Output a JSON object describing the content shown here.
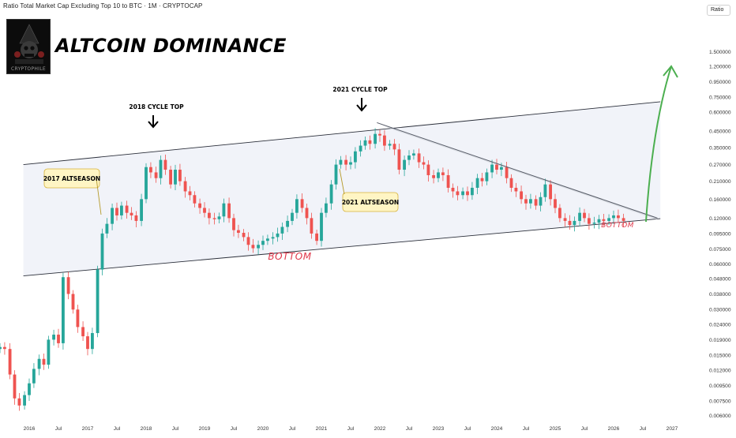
{
  "header": {
    "chart_title": "Ratio Total Market Cap Excluding Top 10 to BTC · 1M · CRYPTOCAP",
    "headline": "ALTCOIN DOMINANCE",
    "logo_text": "CRYPTOPHILE",
    "scale_badge": "Ratio"
  },
  "chart_data": {
    "type": "candlestick",
    "title": "Ratio Total Market Cap Excluding Top 10 to BTC · 1M · CRYPTOCAP",
    "y_scale": "log",
    "ylim": [
      0.0055,
      2.4
    ],
    "y_ticks": [
      "1.500000",
      "1.200000",
      "0.950000",
      "0.750000",
      "0.600000",
      "0.450000",
      "0.350000",
      "0.270000",
      "0.210000",
      "0.160000",
      "0.120000",
      "0.095000",
      "0.075000",
      "0.060000",
      "0.048000",
      "0.038000",
      "0.030000",
      "0.024000",
      "0.019000",
      "0.015000",
      "0.012000",
      "0.009500",
      "0.007500",
      "0.006000"
    ],
    "x_ticks": [
      "Jul",
      "2016",
      "Jul",
      "2017",
      "Jul",
      "2018",
      "Jul",
      "2019",
      "Jul",
      "2020",
      "Jul",
      "2021",
      "Jul",
      "2022",
      "Jul",
      "2023",
      "Jul",
      "2024",
      "Jul",
      "2025",
      "Jul",
      "2026",
      "Jul",
      "2027",
      "Jul"
    ],
    "x_range": [
      2015.5,
      2027.5
    ],
    "bull_color": "#26a69a",
    "bear_color": "#ef5350",
    "channel_color": "#2a2e39",
    "channel_fill": "#eef1f8",
    "arrow_color": "#4caf50",
    "bottom_label_color": "#e0384b",
    "callout_fill": "#fff5c4",
    "candles": [
      {
        "t": 2015.5,
        "c": 0.017
      },
      {
        "t": 2015.58,
        "c": 0.0165
      },
      {
        "t": 2015.67,
        "c": 0.0112
      },
      {
        "t": 2015.75,
        "c": 0.0078
      },
      {
        "t": 2015.83,
        "c": 0.007
      },
      {
        "t": 2015.92,
        "c": 0.0082
      },
      {
        "t": 2016.0,
        "c": 0.0098
      },
      {
        "t": 2016.08,
        "c": 0.0122
      },
      {
        "t": 2016.17,
        "c": 0.0142
      },
      {
        "t": 2016.25,
        "c": 0.013
      },
      {
        "t": 2016.33,
        "c": 0.019
      },
      {
        "t": 2016.42,
        "c": 0.0205
      },
      {
        "t": 2016.5,
        "c": 0.018
      },
      {
        "t": 2016.58,
        "c": 0.049
      },
      {
        "t": 2016.67,
        "c": 0.038
      },
      {
        "t": 2016.75,
        "c": 0.03
      },
      {
        "t": 2016.83,
        "c": 0.023
      },
      {
        "t": 2016.92,
        "c": 0.02
      },
      {
        "t": 2017.0,
        "c": 0.0165
      },
      {
        "t": 2017.08,
        "c": 0.021
      },
      {
        "t": 2017.17,
        "c": 0.055
      },
      {
        "t": 2017.25,
        "c": 0.095
      },
      {
        "t": 2017.33,
        "c": 0.11
      },
      {
        "t": 2017.42,
        "c": 0.14
      },
      {
        "t": 2017.5,
        "c": 0.125
      },
      {
        "t": 2017.58,
        "c": 0.145
      },
      {
        "t": 2017.67,
        "c": 0.13
      },
      {
        "t": 2017.75,
        "c": 0.125
      },
      {
        "t": 2017.83,
        "c": 0.115
      },
      {
        "t": 2017.92,
        "c": 0.16
      },
      {
        "t": 2018.0,
        "c": 0.26
      },
      {
        "t": 2018.08,
        "c": 0.24
      },
      {
        "t": 2018.17,
        "c": 0.22
      },
      {
        "t": 2018.25,
        "c": 0.29
      },
      {
        "t": 2018.33,
        "c": 0.25
      },
      {
        "t": 2018.42,
        "c": 0.2
      },
      {
        "t": 2018.5,
        "c": 0.25
      },
      {
        "t": 2018.58,
        "c": 0.21
      },
      {
        "t": 2018.67,
        "c": 0.18
      },
      {
        "t": 2018.75,
        "c": 0.17
      },
      {
        "t": 2018.83,
        "c": 0.15
      },
      {
        "t": 2018.92,
        "c": 0.14
      },
      {
        "t": 2019.0,
        "c": 0.13
      },
      {
        "t": 2019.08,
        "c": 0.12
      },
      {
        "t": 2019.17,
        "c": 0.118
      },
      {
        "t": 2019.25,
        "c": 0.123
      },
      {
        "t": 2019.33,
        "c": 0.15
      },
      {
        "t": 2019.42,
        "c": 0.12
      },
      {
        "t": 2019.5,
        "c": 0.1
      },
      {
        "t": 2019.58,
        "c": 0.096
      },
      {
        "t": 2019.67,
        "c": 0.09
      },
      {
        "t": 2019.75,
        "c": 0.08
      },
      {
        "t": 2019.83,
        "c": 0.076
      },
      {
        "t": 2019.92,
        "c": 0.08
      },
      {
        "t": 2020.0,
        "c": 0.085
      },
      {
        "t": 2020.08,
        "c": 0.088
      },
      {
        "t": 2020.17,
        "c": 0.09
      },
      {
        "t": 2020.25,
        "c": 0.095
      },
      {
        "t": 2020.33,
        "c": 0.105
      },
      {
        "t": 2020.42,
        "c": 0.115
      },
      {
        "t": 2020.5,
        "c": 0.13
      },
      {
        "t": 2020.58,
        "c": 0.16
      },
      {
        "t": 2020.67,
        "c": 0.14
      },
      {
        "t": 2020.75,
        "c": 0.12
      },
      {
        "t": 2020.83,
        "c": 0.095
      },
      {
        "t": 2020.92,
        "c": 0.085
      },
      {
        "t": 2021.0,
        "c": 0.13
      },
      {
        "t": 2021.08,
        "c": 0.15
      },
      {
        "t": 2021.17,
        "c": 0.2
      },
      {
        "t": 2021.25,
        "c": 0.27
      },
      {
        "t": 2021.33,
        "c": 0.29
      },
      {
        "t": 2021.42,
        "c": 0.27
      },
      {
        "t": 2021.5,
        "c": 0.28
      },
      {
        "t": 2021.58,
        "c": 0.33
      },
      {
        "t": 2021.67,
        "c": 0.36
      },
      {
        "t": 2021.75,
        "c": 0.39
      },
      {
        "t": 2021.83,
        "c": 0.37
      },
      {
        "t": 2021.92,
        "c": 0.43
      },
      {
        "t": 2022.0,
        "c": 0.42
      },
      {
        "t": 2022.08,
        "c": 0.36
      },
      {
        "t": 2022.17,
        "c": 0.37
      },
      {
        "t": 2022.25,
        "c": 0.34
      },
      {
        "t": 2022.33,
        "c": 0.25
      },
      {
        "t": 2022.42,
        "c": 0.29
      },
      {
        "t": 2022.5,
        "c": 0.31
      },
      {
        "t": 2022.58,
        "c": 0.32
      },
      {
        "t": 2022.67,
        "c": 0.28
      },
      {
        "t": 2022.75,
        "c": 0.27
      },
      {
        "t": 2022.83,
        "c": 0.23
      },
      {
        "t": 2022.92,
        "c": 0.22
      },
      {
        "t": 2023.0,
        "c": 0.24
      },
      {
        "t": 2023.08,
        "c": 0.23
      },
      {
        "t": 2023.17,
        "c": 0.19
      },
      {
        "t": 2023.25,
        "c": 0.18
      },
      {
        "t": 2023.33,
        "c": 0.17
      },
      {
        "t": 2023.42,
        "c": 0.18
      },
      {
        "t": 2023.5,
        "c": 0.17
      },
      {
        "t": 2023.58,
        "c": 0.19
      },
      {
        "t": 2023.67,
        "c": 0.22
      },
      {
        "t": 2023.75,
        "c": 0.21
      },
      {
        "t": 2023.83,
        "c": 0.24
      },
      {
        "t": 2023.92,
        "c": 0.27
      },
      {
        "t": 2024.0,
        "c": 0.25
      },
      {
        "t": 2024.08,
        "c": 0.26
      },
      {
        "t": 2024.17,
        "c": 0.22
      },
      {
        "t": 2024.25,
        "c": 0.19
      },
      {
        "t": 2024.33,
        "c": 0.18
      },
      {
        "t": 2024.42,
        "c": 0.16
      },
      {
        "t": 2024.5,
        "c": 0.15
      },
      {
        "t": 2024.58,
        "c": 0.16
      },
      {
        "t": 2024.67,
        "c": 0.145
      },
      {
        "t": 2024.75,
        "c": 0.165
      },
      {
        "t": 2024.83,
        "c": 0.2
      },
      {
        "t": 2024.92,
        "c": 0.16
      },
      {
        "t": 2025.0,
        "c": 0.14
      },
      {
        "t": 2025.08,
        "c": 0.12
      },
      {
        "t": 2025.17,
        "c": 0.115
      },
      {
        "t": 2025.25,
        "c": 0.108
      },
      {
        "t": 2025.33,
        "c": 0.115
      },
      {
        "t": 2025.42,
        "c": 0.13
      },
      {
        "t": 2025.5,
        "c": 0.12
      },
      {
        "t": 2025.58,
        "c": 0.11
      },
      {
        "t": 2025.67,
        "c": 0.112
      },
      {
        "t": 2025.75,
        "c": 0.118
      },
      {
        "t": 2025.83,
        "c": 0.115
      },
      {
        "t": 2025.92,
        "c": 0.12
      },
      {
        "t": 2026.0,
        "c": 0.125
      },
      {
        "t": 2026.08,
        "c": 0.12
      },
      {
        "t": 2026.17,
        "c": 0.115
      }
    ],
    "channel": {
      "upper": [
        {
          "t": 2015.9,
          "v": 0.27
        },
        {
          "t": 2026.8,
          "v": 0.7
        }
      ],
      "lower": [
        {
          "t": 2015.9,
          "v": 0.05
        },
        {
          "t": 2026.8,
          "v": 0.119
        }
      ]
    },
    "resistance_line": [
      {
        "t": 2021.95,
        "v": 0.51
      },
      {
        "t": 2026.75,
        "v": 0.12
      }
    ],
    "annotations": {
      "cycle_top_2018": "2018 CYCLE TOP",
      "cycle_top_2021": "2021 CYCLE TOP",
      "altseason_2017": "2017 ALTSEASON",
      "altseason_2021": "2021 ALTSEASON",
      "bottom_left": "BOTTOM",
      "bottom_right": "BOTTOM"
    }
  }
}
